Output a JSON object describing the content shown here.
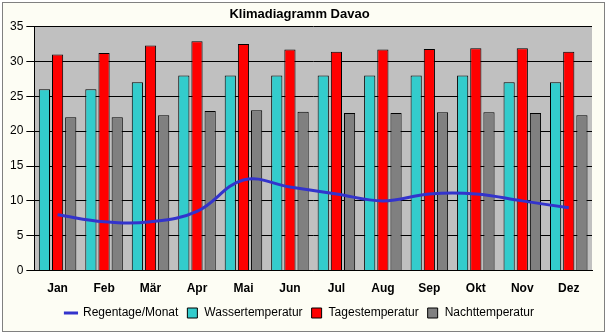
{
  "chart_data": {
    "type": "bar",
    "title": "Klimadiagramm Davao",
    "categories": [
      "Jan",
      "Feb",
      "Mär",
      "Apr",
      "Mai",
      "Jun",
      "Jul",
      "Aug",
      "Sep",
      "Okt",
      "Nov",
      "Dez"
    ],
    "series": [
      {
        "name": "Wassertemperatur",
        "color": "#33cccc",
        "values": [
          26,
          26,
          27,
          28,
          28,
          28,
          28,
          28,
          28,
          28,
          27,
          27
        ]
      },
      {
        "name": "Tagestemperatur",
        "color": "#ff0000",
        "values": [
          31,
          31.2,
          32.3,
          32.9,
          32.5,
          31.7,
          31.4,
          31.7,
          31.8,
          31.9,
          31.9,
          31.4
        ]
      },
      {
        "name": "Nachttemperatur",
        "color": "#808080",
        "values": [
          22,
          22,
          22.3,
          22.9,
          23,
          22.8,
          22.6,
          22.6,
          22.7,
          22.7,
          22.6,
          22.3
        ]
      },
      {
        "name": "Regentage/Monat",
        "color": "#3333cc",
        "type": "line",
        "marker": "none",
        "values": [
          8,
          7,
          7,
          8.5,
          13,
          12,
          11,
          10,
          11,
          11,
          10,
          9
        ]
      }
    ],
    "ylim": [
      0,
      35
    ],
    "yticks": [
      0,
      5,
      10,
      15,
      20,
      25,
      30,
      35
    ],
    "grid": true,
    "legend": "bottom"
  }
}
